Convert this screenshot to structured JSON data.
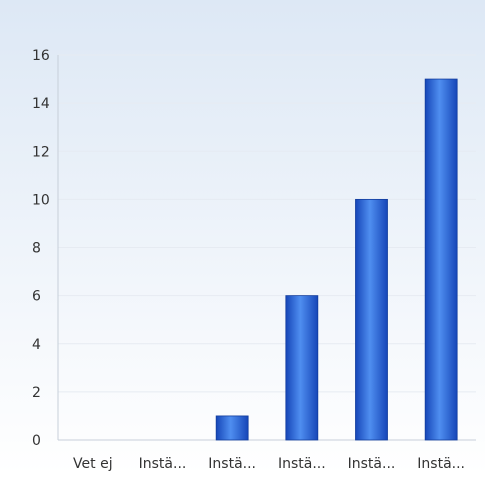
{
  "chart_data": {
    "type": "bar",
    "categories": [
      "Vet ej",
      "Instä...",
      "Instä...",
      "Instä...",
      "Instä...",
      "Instä..."
    ],
    "values": [
      0,
      0,
      1,
      6,
      10,
      15
    ],
    "ylim": [
      0,
      16
    ],
    "yticks": [
      0,
      2,
      4,
      6,
      8,
      10,
      12,
      14,
      16
    ],
    "grid": true,
    "title": "",
    "xlabel": "",
    "ylabel": ""
  },
  "colors": {
    "background_top": "#dde8f5",
    "background_bottom": "#ffffff",
    "gridline": "#e6ebf2",
    "bar_dark": "#1646b8",
    "bar_light": "#4f8ef0",
    "text": "#333333"
  }
}
